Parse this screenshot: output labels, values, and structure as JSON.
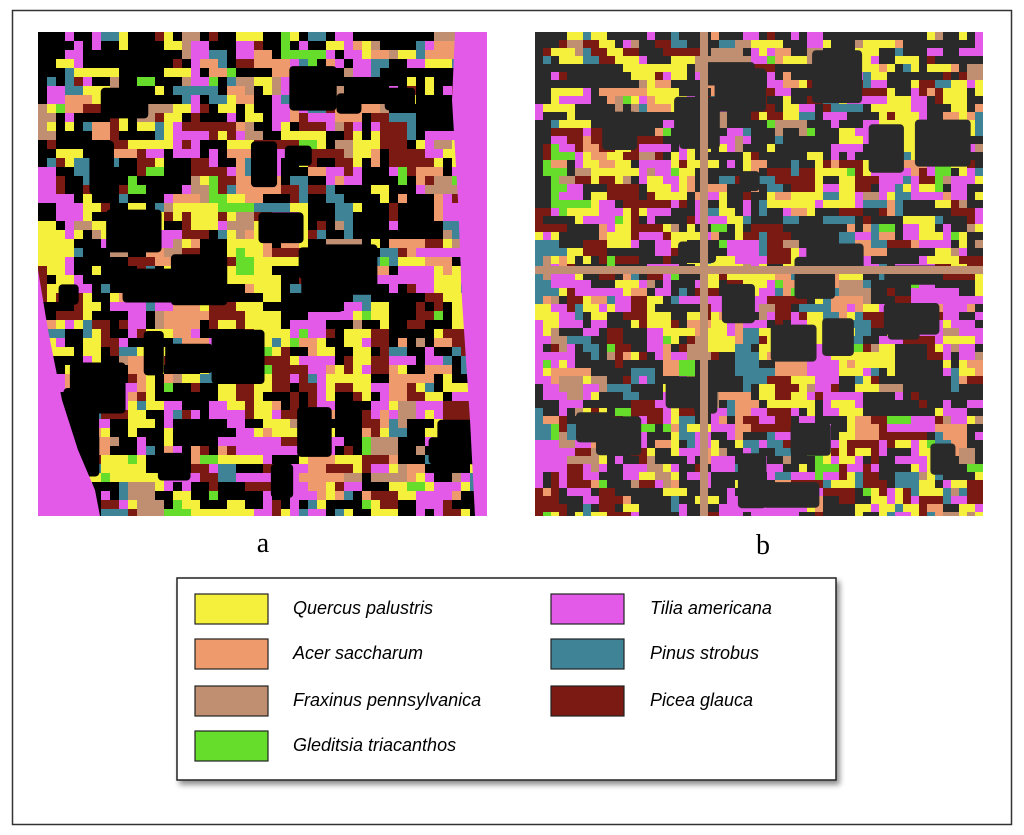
{
  "panels": [
    {
      "label": "a"
    },
    {
      "label": "b"
    }
  ],
  "legend": {
    "items": [
      {
        "name": "Quercus palustris",
        "color": "#f5f03c"
      },
      {
        "name": "Acer saccharum",
        "color": "#ee9a6c"
      },
      {
        "name": "Fraxinus pennsylvanica",
        "color": "#c08f72"
      },
      {
        "name": "Gleditsia triacanthos",
        "color": "#66dd2a"
      },
      {
        "name": "Tilia americana",
        "color": "#e35ae8"
      },
      {
        "name": "Pinus strobus",
        "color": "#3f8397"
      },
      {
        "name": "Picea glauca",
        "color": "#7a1a12"
      }
    ]
  }
}
